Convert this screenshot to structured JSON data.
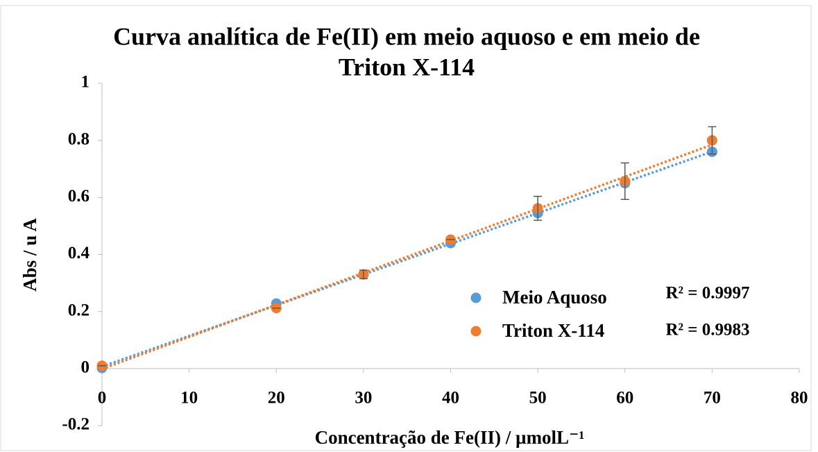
{
  "chart_data": {
    "type": "scatter",
    "title": [
      "Curva analítica de Fe(II) em meio aquoso e em meio de",
      "Triton X-114"
    ],
    "x_label": "Concentração de Fe(II) / µmolL⁻¹",
    "y_label": "Abs / u A",
    "x": [
      0,
      20,
      30,
      40,
      50,
      60,
      70
    ],
    "series": [
      {
        "name": "Meio Aquoso",
        "color": "#5b9bd5",
        "values": [
          0.002,
          0.228,
          0.33,
          0.44,
          0.545,
          0.65,
          0.76
        ]
      },
      {
        "name": "Triton X-114",
        "color": "#ed7d31",
        "values": [
          0.01,
          0.212,
          0.33,
          0.452,
          0.562,
          0.657,
          0.8
        ],
        "errors": [
          0,
          0,
          0.015,
          0,
          0.042,
          0.064,
          0.048
        ]
      }
    ],
    "annotations": [
      "R² = 0.9997",
      "R² = 0.9983"
    ],
    "trendline": "linear",
    "xlim": [
      0,
      80
    ],
    "xticks": [
      0,
      10,
      20,
      30,
      40,
      50,
      60,
      70,
      80
    ],
    "ylim": [
      -0.2,
      1
    ],
    "yticks": [
      -0.2,
      0,
      0.2,
      0.4,
      0.6,
      0.8,
      1
    ],
    "grid": false
  }
}
